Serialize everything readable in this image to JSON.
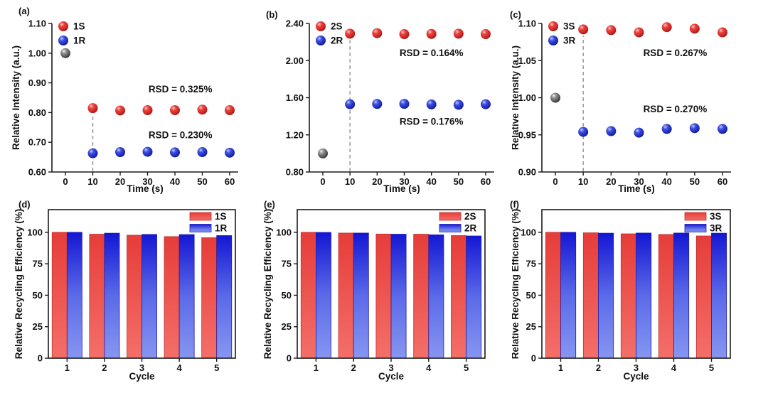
{
  "colors": {
    "background": "#ffffff",
    "axis": "#1a1a1a",
    "text": "#111111",
    "dashed_guide": "#909090",
    "ball_red": [
      "#ffc9c2",
      "#e84440",
      "#d42b28",
      "#8a1412"
    ],
    "ball_blue": [
      "#c3cbff",
      "#4050dd",
      "#2433c8",
      "#0e1566"
    ],
    "ball_gray": [
      "#f2f2f2",
      "#8f8f8f",
      "#636363",
      "#262626"
    ],
    "bar_red": [
      "#e63d39",
      "#f46f69"
    ],
    "bar_blue": [
      "#1417d4",
      "#5b6ae8",
      "#8796f1"
    ],
    "bar_red_edge": "#c2312d",
    "bar_blue_edge": "#1c1cae"
  },
  "chart_data": [
    {
      "panel_label": "(a)",
      "type": "scatter",
      "xlabel": "Time (s)",
      "ylabel": "Relative Intensity (a.u.)",
      "xlim": [
        0,
        60
      ],
      "xticks": [
        0,
        10,
        20,
        30,
        40,
        50,
        60
      ],
      "yticks": [
        "0.60",
        "0.70",
        "0.80",
        "0.90",
        "1.00",
        "1.10"
      ],
      "ylim": [
        0.6,
        1.1
      ],
      "grid": false,
      "legend_position": "top-left",
      "legend": [
        {
          "label": "1S",
          "color": "red"
        },
        {
          "label": "1R",
          "color": "blue"
        }
      ],
      "baseline_point": {
        "x": 0,
        "y": 1.0,
        "color": "gray"
      },
      "dashed_guide_x": 10,
      "series": [
        {
          "name": "1S",
          "color": "red",
          "points": [
            [
              10,
              0.815
            ],
            [
              20,
              0.807
            ],
            [
              30,
              0.808
            ],
            [
              40,
              0.808
            ],
            [
              50,
              0.81
            ],
            [
              60,
              0.808
            ]
          ]
        },
        {
          "name": "1R",
          "color": "blue",
          "points": [
            [
              10,
              0.663
            ],
            [
              20,
              0.667
            ],
            [
              30,
              0.668
            ],
            [
              40,
              0.666
            ],
            [
              50,
              0.667
            ],
            [
              60,
              0.665
            ]
          ]
        }
      ],
      "annotations": [
        {
          "text": "RSD = 0.325%",
          "x": 42,
          "y": 0.877
        },
        {
          "text": "RSD = 0.230%",
          "x": 42,
          "y": 0.723
        }
      ]
    },
    {
      "panel_label": "(b)",
      "type": "scatter",
      "xlabel": "Time (s)",
      "ylabel": "",
      "xlim": [
        0,
        60
      ],
      "xticks": [
        0,
        10,
        20,
        30,
        40,
        50,
        60
      ],
      "yticks": [
        "0.80",
        "1.20",
        "1.60",
        "2.00",
        "2.40"
      ],
      "ylim": [
        0.8,
        2.4
      ],
      "grid": false,
      "legend_position": "top-left",
      "legend": [
        {
          "label": "2S",
          "color": "red"
        },
        {
          "label": "2R",
          "color": "blue"
        }
      ],
      "baseline_point": {
        "x": 0,
        "y": 1.0,
        "color": "gray"
      },
      "dashed_guide_x": 10,
      "series": [
        {
          "name": "2S",
          "color": "red",
          "points": [
            [
              10,
              2.29
            ],
            [
              20,
              2.295
            ],
            [
              30,
              2.285
            ],
            [
              40,
              2.287
            ],
            [
              50,
              2.29
            ],
            [
              60,
              2.285
            ]
          ]
        },
        {
          "name": "2R",
          "color": "blue",
          "points": [
            [
              10,
              1.53
            ],
            [
              20,
              1.533
            ],
            [
              30,
              1.534
            ],
            [
              40,
              1.528
            ],
            [
              50,
              1.524
            ],
            [
              60,
              1.53
            ]
          ]
        }
      ],
      "annotations": [
        {
          "text": "RSD = 0.164%",
          "x": 40,
          "y": 2.08
        },
        {
          "text": "RSD = 0.176%",
          "x": 40,
          "y": 1.34
        }
      ]
    },
    {
      "panel_label": "(c)",
      "type": "scatter",
      "xlabel": "Time (s)",
      "ylabel": "Relative Intensity (a.u.)",
      "xlim": [
        0,
        60
      ],
      "xticks": [
        0,
        10,
        20,
        30,
        40,
        50,
        60
      ],
      "yticks": [
        "0.90",
        "0.95",
        "1.00",
        "1.05",
        "1.10"
      ],
      "ylim": [
        0.9,
        1.1
      ],
      "grid": false,
      "legend_position": "top-left",
      "legend": [
        {
          "label": "3S",
          "color": "red"
        },
        {
          "label": "3R",
          "color": "blue"
        }
      ],
      "baseline_point": {
        "x": 0,
        "y": 1.0,
        "color": "gray"
      },
      "dashed_guide_x": 10,
      "series": [
        {
          "name": "3S",
          "color": "red",
          "points": [
            [
              10,
              1.092
            ],
            [
              20,
              1.091
            ],
            [
              30,
              1.088
            ],
            [
              40,
              1.095
            ],
            [
              50,
              1.093
            ],
            [
              60,
              1.088
            ]
          ]
        },
        {
          "name": "3R",
          "color": "blue",
          "points": [
            [
              10,
              0.954
            ],
            [
              20,
              0.955
            ],
            [
              30,
              0.953
            ],
            [
              40,
              0.958
            ],
            [
              50,
              0.959
            ],
            [
              60,
              0.958
            ]
          ]
        }
      ],
      "annotations": [
        {
          "text": "RSD = 0.267%",
          "x": 43,
          "y": 1.06
        },
        {
          "text": "RSD = 0.270%",
          "x": 43,
          "y": 0.984
        }
      ]
    },
    {
      "panel_label": "(d)",
      "type": "bar",
      "xlabel": "Cycle",
      "ylabel": "Relative Recycling Efficiency (%)",
      "categories": [
        "1",
        "2",
        "3",
        "4",
        "5"
      ],
      "yticks": [
        0,
        25,
        50,
        75,
        100
      ],
      "ylim": [
        0,
        118
      ],
      "grid": false,
      "legend_position": "top-right",
      "legend": [
        {
          "label": "1S",
          "color": "red"
        },
        {
          "label": "1R",
          "color": "blue"
        }
      ],
      "series": [
        {
          "name": "1S",
          "color": "red",
          "values": [
            100,
            98.5,
            97.7,
            96.6,
            95.7
          ]
        },
        {
          "name": "1R",
          "color": "blue",
          "values": [
            100,
            99.3,
            98.3,
            98.2,
            97.4
          ]
        }
      ]
    },
    {
      "panel_label": "(e)",
      "type": "bar",
      "xlabel": "Cycle",
      "ylabel": "Relative Recycling Efficiency (%)",
      "categories": [
        "1",
        "2",
        "3",
        "4",
        "5"
      ],
      "yticks": [
        0,
        25,
        50,
        75,
        100
      ],
      "ylim": [
        0,
        118
      ],
      "grid": false,
      "legend_position": "top-right",
      "legend": [
        {
          "label": "2S",
          "color": "red"
        },
        {
          "label": "2R",
          "color": "blue"
        }
      ],
      "series": [
        {
          "name": "2S",
          "color": "red",
          "values": [
            100,
            99.4,
            98.6,
            98.5,
            97.4
          ]
        },
        {
          "name": "2R",
          "color": "blue",
          "values": [
            99.9,
            99.4,
            98.5,
            98.0,
            97.1
          ]
        }
      ]
    },
    {
      "panel_label": "(f)",
      "type": "bar",
      "xlabel": "Cycle",
      "ylabel": "Relative Recycling Efficiency (%)",
      "categories": [
        "1",
        "2",
        "3",
        "4",
        "5"
      ],
      "yticks": [
        0,
        25,
        50,
        75,
        100
      ],
      "ylim": [
        0,
        118
      ],
      "grid": false,
      "legend_position": "top-right",
      "legend": [
        {
          "label": "3S",
          "color": "red"
        },
        {
          "label": "3R",
          "color": "blue"
        }
      ],
      "series": [
        {
          "name": "3S",
          "color": "red",
          "values": [
            100,
            99.6,
            98.8,
            98.3,
            97.1
          ]
        },
        {
          "name": "3R",
          "color": "blue",
          "values": [
            100,
            99.3,
            99.4,
            99.4,
            99.3
          ]
        }
      ]
    }
  ]
}
